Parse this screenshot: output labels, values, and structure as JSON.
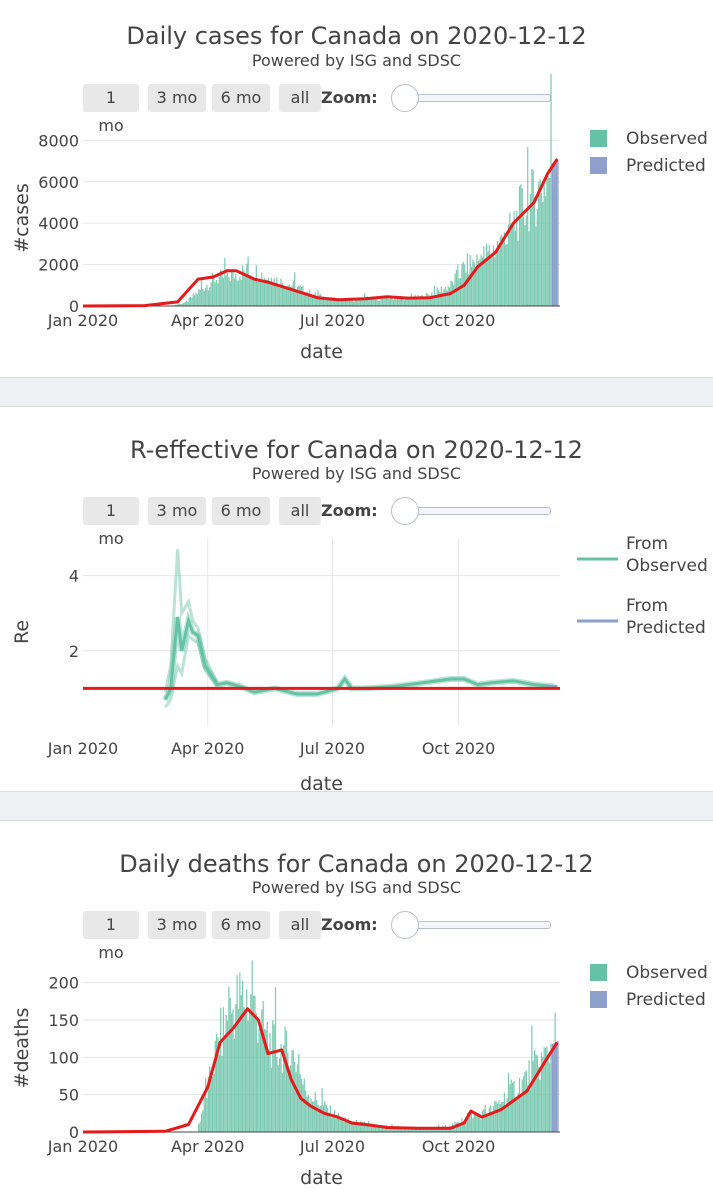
{
  "buttons": [
    "1 mo",
    "3 mo",
    "6 mo",
    "all"
  ],
  "zoom_label": "Zoom:",
  "colors": {
    "observed": "#66c2a5",
    "predicted": "#8da0cb",
    "trend": "#e41a1c",
    "grid": "#e6e6e6"
  },
  "chart_data": [
    {
      "type": "bar",
      "title": "Daily cases for Canada on 2020-12-12",
      "subtitle": "Powered by ISG and SDSC",
      "xlabel": "date",
      "ylabel": "#cases",
      "xticks": [
        "Jan 2020",
        "Apr 2020",
        "Jul 2020",
        "Oct 2020"
      ],
      "ylim": [
        0,
        8500
      ],
      "yticks": [
        0,
        2000,
        4000,
        6000,
        8000
      ],
      "legend": [
        "Observed",
        "Predicted"
      ],
      "series": [
        {
          "name": "Observed",
          "kind": "bars",
          "x": [
            "2020-03-05",
            "2020-03-15",
            "2020-03-25",
            "2020-04-05",
            "2020-04-15",
            "2020-04-25",
            "2020-05-05",
            "2020-05-15",
            "2020-05-25",
            "2020-06-05",
            "2020-06-15",
            "2020-06-25",
            "2020-07-05",
            "2020-07-15",
            "2020-07-25",
            "2020-08-05",
            "2020-08-15",
            "2020-08-25",
            "2020-09-05",
            "2020-09-15",
            "2020-09-25",
            "2020-10-05",
            "2020-10-15",
            "2020-10-25",
            "2020-11-05",
            "2020-11-15",
            "2020-11-25",
            "2020-12-05",
            "2020-12-11"
          ],
          "values": [
            20,
            150,
            700,
            1300,
            1400,
            1650,
            1700,
            1350,
            1150,
            900,
            600,
            400,
            300,
            300,
            380,
            350,
            400,
            380,
            450,
            700,
            1000,
            1900,
            2200,
            2700,
            3300,
            4600,
            5300,
            6300,
            6900
          ]
        },
        {
          "name": "Predicted",
          "kind": "bars",
          "x": [
            "2020-12-08",
            "2020-12-12"
          ],
          "values": [
            6900,
            7000
          ]
        },
        {
          "name": "Trend",
          "kind": "line",
          "x": [
            "2020-01-01",
            "2020-02-15",
            "2020-03-10",
            "2020-03-25",
            "2020-04-05",
            "2020-04-15",
            "2020-04-22",
            "2020-05-05",
            "2020-05-15",
            "2020-06-01",
            "2020-06-20",
            "2020-07-05",
            "2020-07-25",
            "2020-08-10",
            "2020-08-25",
            "2020-09-10",
            "2020-09-25",
            "2020-10-05",
            "2020-10-15",
            "2020-10-28",
            "2020-11-10",
            "2020-11-25",
            "2020-12-05",
            "2020-12-12"
          ],
          "values": [
            0,
            20,
            200,
            1300,
            1400,
            1700,
            1700,
            1300,
            1150,
            800,
            400,
            300,
            350,
            450,
            380,
            400,
            600,
            1000,
            1900,
            2600,
            4000,
            5000,
            6400,
            7100
          ]
        }
      ]
    },
    {
      "type": "line",
      "title": "R-effective for Canada on 2020-12-12",
      "subtitle": "Powered by ISG and SDSC",
      "xlabel": "date",
      "ylabel": "Re",
      "xticks": [
        "Jan 2020",
        "Apr 2020",
        "Jul 2020",
        "Oct 2020"
      ],
      "ylim": [
        0,
        5
      ],
      "yticks": [
        2,
        4
      ],
      "legend": [
        "From Observed",
        "From Predicted"
      ],
      "series": [
        {
          "name": "From Observed",
          "kind": "median",
          "x": [
            "2020-03-01",
            "2020-03-05",
            "2020-03-10",
            "2020-03-13",
            "2020-03-18",
            "2020-03-21",
            "2020-03-25",
            "2020-03-30",
            "2020-04-08",
            "2020-04-15",
            "2020-04-25",
            "2020-05-05",
            "2020-05-20",
            "2020-06-05",
            "2020-06-20",
            "2020-07-05",
            "2020-07-10",
            "2020-07-15",
            "2020-07-25",
            "2020-08-15",
            "2020-09-05",
            "2020-09-25",
            "2020-10-05",
            "2020-10-15",
            "2020-10-25",
            "2020-11-10",
            "2020-11-25",
            "2020-12-10"
          ],
          "values": [
            0.7,
            1.0,
            2.9,
            2.0,
            2.8,
            2.5,
            2.4,
            1.6,
            1.1,
            1.15,
            1.05,
            0.9,
            1.0,
            0.85,
            0.85,
            1.0,
            1.25,
            1.0,
            1.0,
            1.05,
            1.15,
            1.25,
            1.25,
            1.1,
            1.15,
            1.2,
            1.1,
            1.05
          ]
        },
        {
          "name": "upper",
          "kind": "band",
          "x": [
            "2020-03-01",
            "2020-03-05",
            "2020-03-10",
            "2020-03-13",
            "2020-03-18",
            "2020-03-21",
            "2020-03-25",
            "2020-03-30",
            "2020-04-08"
          ],
          "values": [
            0.9,
            1.6,
            4.7,
            3.0,
            3.3,
            2.8,
            2.6,
            1.8,
            1.15
          ]
        },
        {
          "name": "lower",
          "kind": "band",
          "x": [
            "2020-03-01",
            "2020-03-05",
            "2020-03-10",
            "2020-03-13",
            "2020-03-18",
            "2020-03-21",
            "2020-03-25",
            "2020-03-30",
            "2020-04-08"
          ],
          "values": [
            0.5,
            0.7,
            1.6,
            1.4,
            2.4,
            2.3,
            2.2,
            1.5,
            1.05
          ]
        },
        {
          "name": "From Predicted",
          "kind": "median",
          "x": [
            "2020-12-04",
            "2020-12-12"
          ],
          "values": [
            1.05,
            1.05
          ]
        },
        {
          "name": "threshold",
          "kind": "hline",
          "values": [
            1
          ]
        }
      ]
    },
    {
      "type": "bar",
      "title": "Daily deaths for Canada on 2020-12-12",
      "subtitle": "Powered by ISG and SDSC",
      "xlabel": "date",
      "ylabel": "#deaths",
      "xticks": [
        "Jan 2020",
        "Apr 2020",
        "Jul 2020",
        "Oct 2020"
      ],
      "ylim": [
        0,
        225
      ],
      "yticks": [
        0,
        50,
        100,
        150,
        200
      ],
      "legend": [
        "Observed",
        "Predicted"
      ],
      "series": [
        {
          "name": "Observed",
          "kind": "bars",
          "x": [
            "2020-03-25",
            "2020-04-01",
            "2020-04-08",
            "2020-04-15",
            "2020-04-22",
            "2020-04-29",
            "2020-05-06",
            "2020-05-13",
            "2020-05-20",
            "2020-05-27",
            "2020-06-03",
            "2020-06-10",
            "2020-06-17",
            "2020-06-24",
            "2020-07-01",
            "2020-07-10",
            "2020-07-20",
            "2020-08-01",
            "2020-08-15",
            "2020-09-01",
            "2020-09-15",
            "2020-10-01",
            "2020-10-08",
            "2020-10-15",
            "2020-10-25",
            "2020-11-05",
            "2020-11-15",
            "2020-11-25",
            "2020-12-05",
            "2020-12-10"
          ],
          "values": [
            10,
            60,
            120,
            150,
            175,
            180,
            160,
            130,
            110,
            110,
            100,
            60,
            45,
            35,
            25,
            15,
            12,
            8,
            6,
            6,
            5,
            12,
            25,
            22,
            30,
            50,
            65,
            85,
            105,
            125
          ]
        },
        {
          "name": "Predicted",
          "kind": "bars",
          "x": [
            "2020-12-08",
            "2020-12-12"
          ],
          "values": [
            118,
            122
          ]
        },
        {
          "name": "Trend",
          "kind": "line",
          "x": [
            "2020-01-01",
            "2020-03-01",
            "2020-03-18",
            "2020-04-01",
            "2020-04-10",
            "2020-04-20",
            "2020-04-30",
            "2020-05-08",
            "2020-05-15",
            "2020-05-25",
            "2020-06-01",
            "2020-06-08",
            "2020-06-15",
            "2020-06-25",
            "2020-07-05",
            "2020-07-15",
            "2020-07-25",
            "2020-08-10",
            "2020-09-01",
            "2020-09-25",
            "2020-10-05",
            "2020-10-10",
            "2020-10-18",
            "2020-11-01",
            "2020-11-20",
            "2020-12-05",
            "2020-12-12"
          ],
          "values": [
            0,
            1,
            10,
            60,
            120,
            140,
            165,
            150,
            105,
            110,
            70,
            45,
            35,
            25,
            20,
            12,
            10,
            6,
            5,
            5,
            12,
            28,
            20,
            30,
            55,
            100,
            120
          ]
        }
      ]
    }
  ]
}
